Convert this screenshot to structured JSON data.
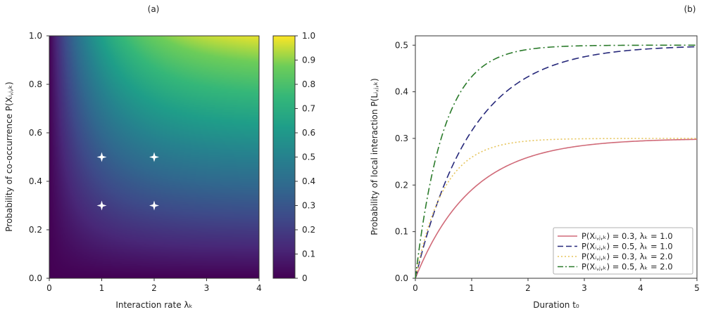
{
  "chart_data": [
    {
      "panel_label": "(a)",
      "type": "heatmap",
      "xlabel": "Interaction rate λₖ",
      "ylabel": "Probability of co-occurrence P(Xᵢ,ⱼ,ₖ)",
      "xlim": [
        0,
        4
      ],
      "ylim": [
        0,
        1
      ],
      "x_ticks": [
        0,
        1,
        2,
        3,
        4
      ],
      "y_ticks": [
        0.0,
        0.2,
        0.4,
        0.6,
        0.8,
        1.0
      ],
      "value_formula": "P(X) * (1 - exp(-lambda))",
      "colormap": "viridis",
      "colorbar": {
        "range": [
          0,
          1
        ],
        "ticks": [
          0,
          0.1,
          0.2,
          0.3,
          0.4,
          0.5,
          0.6,
          0.7,
          0.8,
          0.9,
          1.0
        ],
        "tick_labels": [
          "0",
          "0.1",
          "0.2",
          "0.3",
          "0.4",
          "0.5",
          "0.6",
          "0.7",
          "0.8",
          "0.9",
          "1.0"
        ]
      },
      "markers": [
        {
          "x": 1,
          "y": 0.5
        },
        {
          "x": 2,
          "y": 0.5
        },
        {
          "x": 1,
          "y": 0.3
        },
        {
          "x": 2,
          "y": 0.3
        }
      ],
      "marker_color": "#ffffff",
      "grid": false
    },
    {
      "panel_label": "(b)",
      "type": "line",
      "xlabel": "Duration t₀",
      "ylabel": "Probability of local interaction P(Lᵢ,ⱼ,ₖ)",
      "xlim": [
        0,
        5
      ],
      "ylim": [
        0,
        0.52
      ],
      "x_ticks": [
        0,
        1,
        2,
        3,
        4,
        5
      ],
      "y_ticks": [
        0.0,
        0.1,
        0.2,
        0.3,
        0.4,
        0.5
      ],
      "curve_formula": "p * (1 - exp(-lambda * t))",
      "legend_position": "lower-right",
      "grid": false,
      "series": [
        {
          "name": "P(Xᵢ,ⱼ,ₖ) = 0.3, λₖ = 1.0",
          "p": 0.3,
          "lambda": 1.0,
          "color": "#d06a78",
          "style": "solid"
        },
        {
          "name": "P(Xᵢ,ⱼ,ₖ) = 0.5, λₖ = 1.0",
          "p": 0.5,
          "lambda": 1.0,
          "color": "#26287a",
          "style": "dashed"
        },
        {
          "name": "P(Xᵢ,ⱼ,ₖ) = 0.3, λₖ = 2.0",
          "p": 0.3,
          "lambda": 2.0,
          "color": "#e6c45a",
          "style": "dotted"
        },
        {
          "name": "P(Xᵢ,ⱼ,ₖ) = 0.5, λₖ = 2.0",
          "p": 0.5,
          "lambda": 2.0,
          "color": "#2a7a2a",
          "style": "dashdot"
        }
      ]
    }
  ]
}
